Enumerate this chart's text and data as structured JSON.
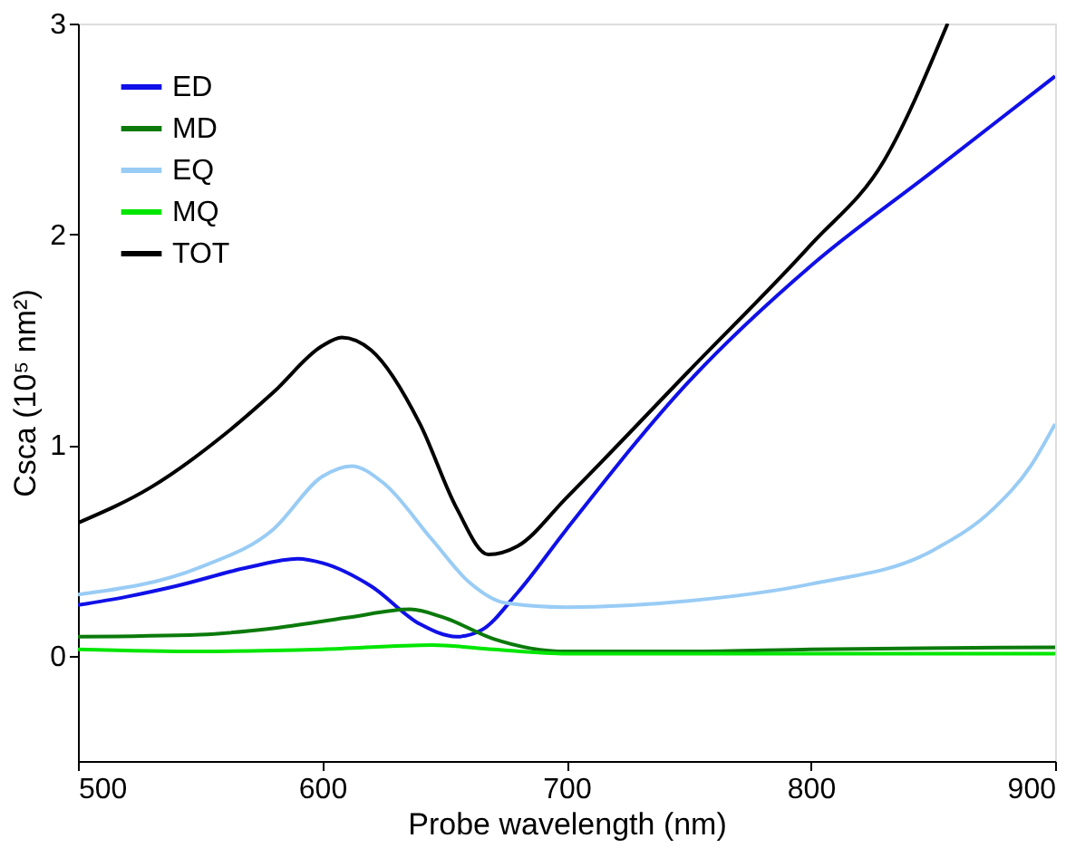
{
  "chart_data": {
    "type": "line",
    "xlabel": "Probe wavelength (nm)",
    "ylabel": "Csca (10⁵ nm²)",
    "xlim": [
      500,
      900
    ],
    "xticks": [
      500,
      600,
      700,
      800,
      900
    ],
    "ylim": [
      -0.5,
      3
    ],
    "yticks": [
      0,
      1,
      2,
      3
    ],
    "grid": false,
    "legend": "top left",
    "marker": "none",
    "line_style": "solid",
    "series": [
      {
        "name": "ED",
        "color": "#1010e8",
        "x": [
          500,
          520,
          540,
          570,
          590,
          600,
          620,
          640,
          655,
          665,
          680,
          700,
          750,
          800,
          850,
          900
        ],
        "values": [
          0.24,
          0.28,
          0.33,
          0.42,
          0.46,
          0.44,
          0.33,
          0.15,
          0.09,
          0.12,
          0.3,
          0.6,
          1.3,
          1.85,
          2.3,
          2.75
        ]
      },
      {
        "name": "MD",
        "color": "#0b7a0b",
        "x": [
          500,
          550,
          580,
          610,
          636,
          650,
          670,
          700,
          750,
          800,
          900
        ],
        "values": [
          0.09,
          0.1,
          0.13,
          0.18,
          0.22,
          0.18,
          0.08,
          0.02,
          0.02,
          0.03,
          0.04
        ]
      },
      {
        "name": "EQ",
        "color": "#99ccf5",
        "x": [
          500,
          550,
          580,
          600,
          612,
          625,
          645,
          660,
          675,
          700,
          750,
          800,
          850,
          875,
          890,
          900
        ],
        "values": [
          0.29,
          0.42,
          0.6,
          0.85,
          0.9,
          0.82,
          0.55,
          0.35,
          0.25,
          0.23,
          0.26,
          0.34,
          0.5,
          0.7,
          0.9,
          1.1
        ]
      },
      {
        "name": "MQ",
        "color": "#00e600",
        "x": [
          500,
          550,
          600,
          645,
          670,
          700,
          800,
          900
        ],
        "values": [
          0.03,
          0.02,
          0.03,
          0.05,
          0.03,
          0.01,
          0.01,
          0.01
        ]
      },
      {
        "name": "TOT",
        "color": "#000000",
        "x": [
          500,
          530,
          560,
          580,
          600,
          608,
          620,
          640,
          655,
          668,
          680,
          700,
          750,
          800,
          830,
          856
        ],
        "values": [
          0.63,
          0.8,
          1.05,
          1.25,
          1.47,
          1.51,
          1.45,
          1.1,
          0.7,
          0.48,
          0.52,
          0.75,
          1.35,
          1.95,
          2.35,
          3.0
        ]
      }
    ]
  }
}
